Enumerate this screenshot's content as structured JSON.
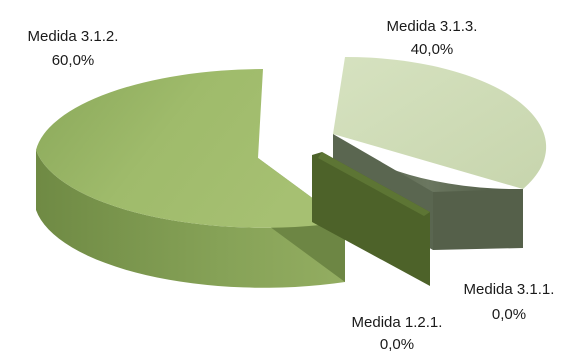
{
  "chart_data": {
    "type": "pie",
    "style": "3d-exploded",
    "legend": "none",
    "slices": [
      {
        "label": "Medida 3.1.2.",
        "value_label": "60,0%",
        "value": 60.0,
        "top_color": "#9bb567",
        "side_color": "#7d9a4e"
      },
      {
        "label": "Medida 3.1.3.",
        "value_label": "40,0%",
        "value": 40.0,
        "top_color": "#cfdcb7",
        "side_color": "#5e6b52"
      },
      {
        "label": "Medida 3.1.1.",
        "value_label": "0,0%",
        "value": 0.0,
        "top_color": "#4a5e2a",
        "side_color": "#3a4a20"
      },
      {
        "label": "Medida 1.2.1.",
        "value_label": "0,0%",
        "value": 0.0,
        "top_color": "#556b30",
        "side_color": "#3f5222"
      }
    ]
  }
}
